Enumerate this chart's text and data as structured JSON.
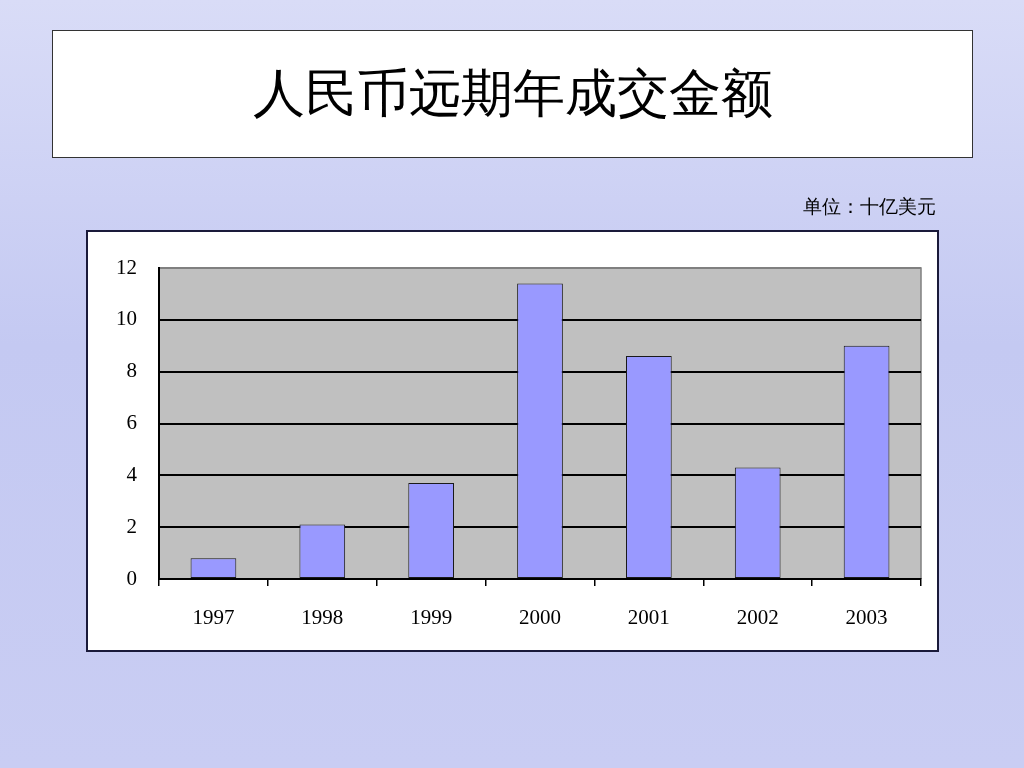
{
  "chart_data": {
    "type": "bar",
    "title": "人民币远期年成交金额",
    "annotations": [
      "单位：十亿美元"
    ],
    "categories": [
      "1997",
      "1998",
      "1999",
      "2000",
      "2001",
      "2002",
      "2003"
    ],
    "values": [
      0.8,
      2.1,
      3.7,
      11.4,
      8.6,
      4.3,
      9.0
    ],
    "color": "#9999ff",
    "ylim": [
      0,
      12
    ],
    "yticks": [
      0,
      2,
      4,
      6,
      8,
      10,
      12
    ],
    "grid": "y"
  }
}
